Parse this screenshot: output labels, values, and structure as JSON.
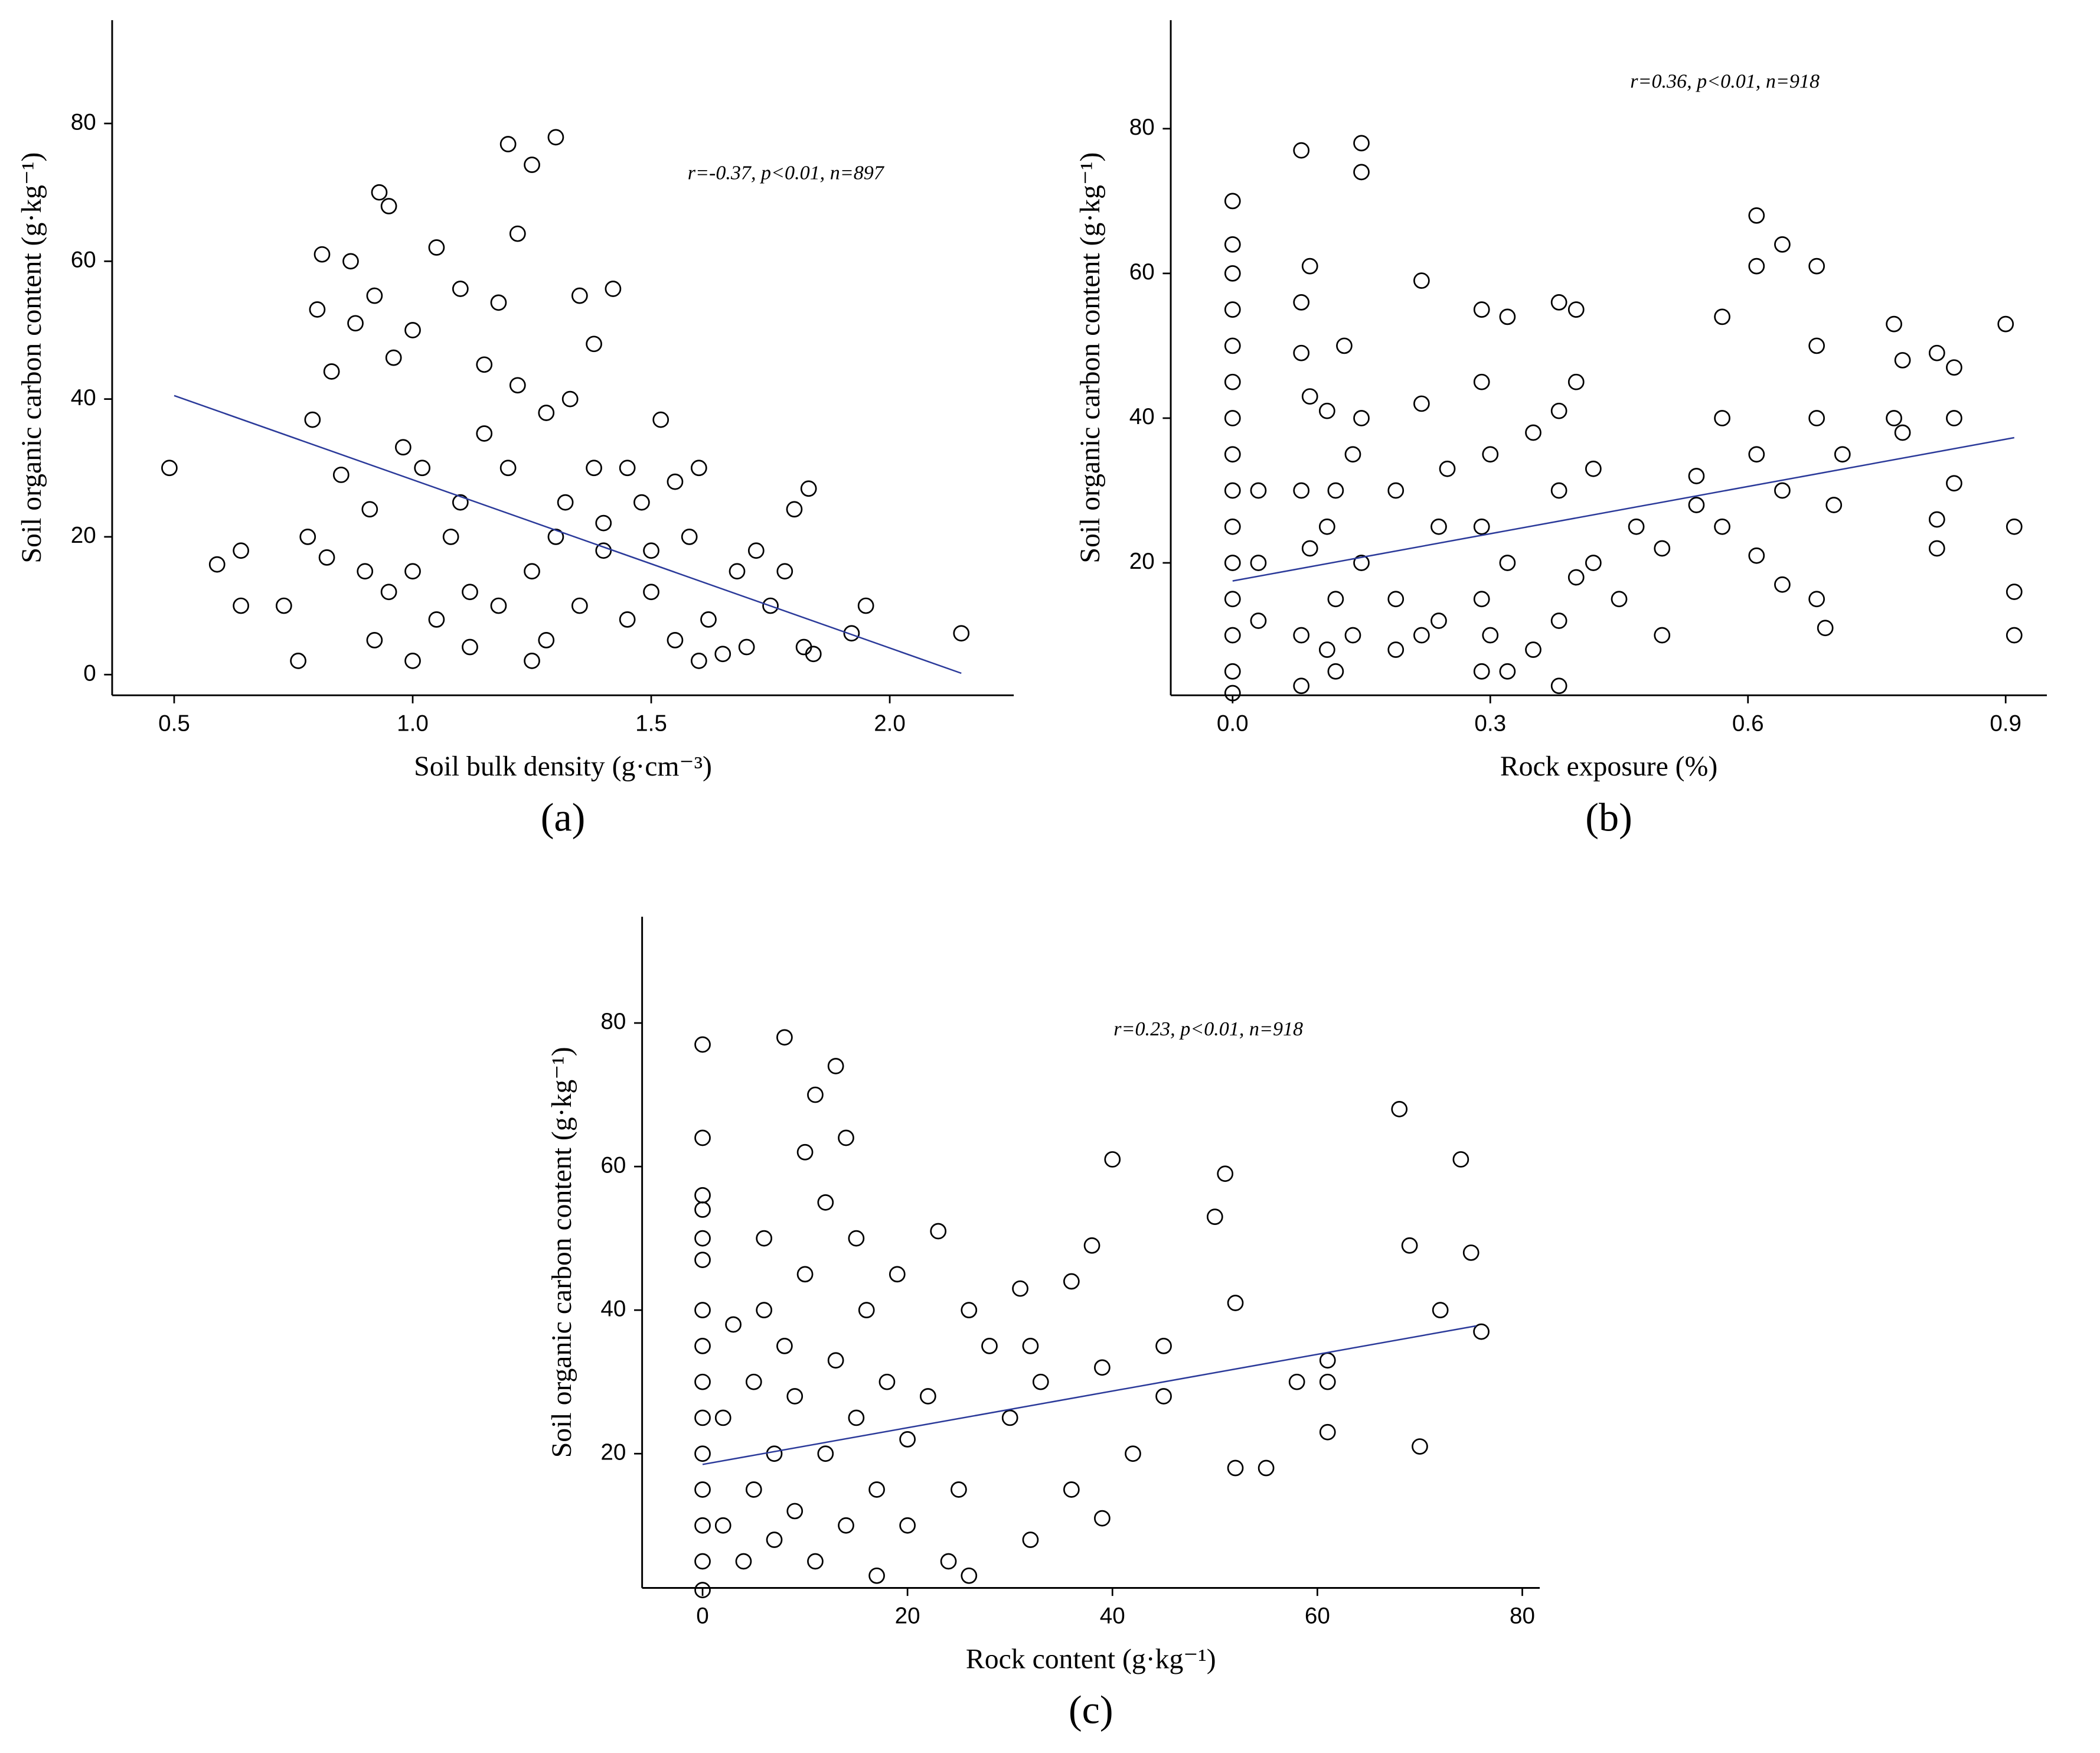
{
  "chart_data": [
    {
      "type": "scatter",
      "panel_label": "(a)",
      "annotation": "r=-0.37, p<0.01, n=897",
      "xlabel": "Soil bulk density (g·cm⁻³)",
      "ylabel": "Soil organic carbon content (g·kg⁻¹)",
      "color": "#000000",
      "trend_color": "#2b3a9a",
      "xlim": [
        0.37,
        2.26
      ],
      "ylim": [
        -3,
        95
      ],
      "xticks": [
        0.5,
        {
          "value": 1,
          "label": "1.0"
        },
        1.5,
        {
          "value": 2,
          "label": "2.0"
        }
      ],
      "yticks": [
        0,
        20,
        40,
        60,
        80
      ],
      "x": [
        0.49,
        0.59,
        0.64,
        0.64,
        0.73,
        0.76,
        0.78,
        0.79,
        0.8,
        0.81,
        0.82,
        0.83,
        0.85,
        0.87,
        0.88,
        0.9,
        0.91,
        0.92,
        0.93,
        0.95,
        0.96,
        0.98,
        1.0,
        1.02,
        1.05,
        1.08,
        1.1,
        1.12,
        1.15,
        1.18,
        1.2,
        1.22,
        1.25,
        1.28,
        1.3,
        1.32,
        1.35,
        1.38,
        1.4,
        1.42,
        1.45,
        1.48,
        1.5,
        1.52,
        1.55,
        1.58,
        1.6,
        1.62,
        1.65,
        1.68,
        1.7,
        1.72,
        1.75,
        1.78,
        1.8,
        1.82,
        1.83,
        1.84,
        1.92,
        1.95,
        2.15,
        1.1,
        1.2,
        1.25,
        1.3,
        1.35,
        1.15,
        1.4,
        1.45,
        1.28,
        1.05,
        1.0,
        1.33,
        1.38,
        1.22,
        1.18,
        1.5,
        1.55,
        0.92,
        0.95,
        1.0,
        1.12,
        1.25,
        1.6
      ],
      "values": [
        30,
        16,
        18,
        10,
        10,
        2,
        20,
        37,
        53,
        61,
        17,
        44,
        29,
        60,
        51,
        15,
        24,
        55,
        70,
        68,
        46,
        33,
        50,
        30,
        62,
        20,
        56,
        12,
        45,
        54,
        77,
        64,
        74,
        38,
        78,
        25,
        55,
        30,
        18,
        56,
        8,
        25,
        12,
        37,
        5,
        20,
        30,
        8,
        3,
        15,
        4,
        18,
        10,
        15,
        24,
        4,
        27,
        3,
        6,
        10,
        6,
        25,
        30,
        15,
        20,
        10,
        35,
        22,
        30,
        5,
        8,
        15,
        40,
        48,
        42,
        10,
        18,
        28,
        5,
        12,
        2,
        4,
        2,
        2
      ],
      "trend_x": [
        0.5,
        2.15
      ],
      "trend_y": [
        40.5,
        0.2
      ]
    },
    {
      "type": "scatter",
      "panel_label": "(b)",
      "annotation": "r=0.36, p<0.01, n=918",
      "xlabel": "Rock exposure (%)",
      "ylabel": "Soil organic carbon content (g·kg⁻¹)",
      "color": "#000000",
      "trend_color": "#2b3a9a",
      "xlim": [
        -0.072,
        0.948
      ],
      "ylim": [
        1.7,
        95
      ],
      "xticks": [
        {
          "value": 0,
          "label": "0.0"
        },
        {
          "value": 0.3,
          "label": "0.3"
        },
        {
          "value": 0.6,
          "label": "0.6"
        },
        {
          "value": 0.9,
          "label": "0.9"
        }
      ],
      "yticks": [
        20,
        40,
        60,
        80
      ],
      "x": [
        0,
        0,
        0,
        0,
        0,
        0,
        0,
        0,
        0,
        0,
        0,
        0,
        0,
        0,
        0,
        0.03,
        0.03,
        0.03,
        0.08,
        0.08,
        0.08,
        0.08,
        0.08,
        0.08,
        0.09,
        0.09,
        0.09,
        0.11,
        0.11,
        0.11,
        0.12,
        0.12,
        0.12,
        0.13,
        0.14,
        0.14,
        0.15,
        0.15,
        0.15,
        0.15,
        0.19,
        0.19,
        0.19,
        0.22,
        0.22,
        0.22,
        0.24,
        0.24,
        0.25,
        0.29,
        0.29,
        0.29,
        0.29,
        0.29,
        0.3,
        0.3,
        0.32,
        0.32,
        0.32,
        0.35,
        0.35,
        0.38,
        0.38,
        0.38,
        0.38,
        0.38,
        0.4,
        0.4,
        0.4,
        0.42,
        0.42,
        0.45,
        0.47,
        0.5,
        0.5,
        0.54,
        0.54,
        0.57,
        0.57,
        0.57,
        0.61,
        0.61,
        0.61,
        0.61,
        0.64,
        0.64,
        0.64,
        0.68,
        0.68,
        0.68,
        0.68,
        0.69,
        0.7,
        0.71,
        0.77,
        0.77,
        0.78,
        0.78,
        0.82,
        0.82,
        0.82,
        0.84,
        0.84,
        0.84,
        0.9,
        0.91,
        0.91,
        0.91
      ],
      "values": [
        2,
        5,
        10,
        15,
        20,
        25,
        30,
        35,
        40,
        45,
        50,
        55,
        60,
        64,
        70,
        12,
        20,
        30,
        3,
        10,
        30,
        49,
        56,
        77,
        22,
        43,
        61,
        8,
        25,
        41,
        5,
        15,
        30,
        50,
        10,
        35,
        20,
        40,
        74,
        78,
        8,
        15,
        30,
        10,
        42,
        59,
        12,
        25,
        33,
        5,
        15,
        25,
        45,
        55,
        10,
        35,
        5,
        20,
        54,
        8,
        38,
        3,
        12,
        30,
        41,
        56,
        18,
        45,
        55,
        20,
        33,
        15,
        25,
        10,
        22,
        28,
        32,
        25,
        40,
        54,
        21,
        35,
        61,
        68,
        17,
        30,
        64,
        15,
        40,
        50,
        61,
        11,
        28,
        35,
        40,
        53,
        38,
        48,
        22,
        26,
        49,
        31,
        40,
        47,
        53,
        10,
        16,
        25
      ],
      "trend_x": [
        0,
        0.91
      ],
      "trend_y": [
        17.5,
        37.3
      ]
    },
    {
      "type": "scatter",
      "panel_label": "(c)",
      "annotation": "r=0.23, p<0.01, n=918",
      "xlabel": "Rock content (g·kg⁻¹)",
      "ylabel": "Soil organic carbon content (g·kg⁻¹)",
      "color": "#000000",
      "trend_color": "#2b3a9a",
      "xlim": [
        -5.9,
        81.7
      ],
      "ylim": [
        1.3,
        94.8
      ],
      "xticks": [
        0,
        20,
        40,
        60,
        80
      ],
      "yticks": [
        20,
        40,
        60,
        80
      ],
      "x": [
        0,
        0,
        0,
        0,
        0,
        0,
        0,
        0,
        0,
        0,
        0,
        0,
        0,
        0,
        0,
        2,
        2,
        3,
        4,
        5,
        5,
        6,
        6,
        7,
        7,
        8,
        8,
        9,
        9,
        10,
        10,
        11,
        11,
        12,
        12,
        13,
        13,
        14,
        14,
        15,
        15,
        16,
        17,
        17,
        18,
        19,
        20,
        20,
        22,
        23,
        24,
        25,
        26,
        26,
        28,
        30,
        31,
        32,
        32,
        33,
        36,
        36,
        38,
        39,
        39,
        40,
        42,
        45,
        45,
        50,
        51,
        52,
        52,
        55,
        58,
        61,
        61,
        61,
        68,
        69,
        70,
        72,
        74,
        75,
        76
      ],
      "values": [
        1,
        5,
        10,
        15,
        20,
        25,
        30,
        35,
        40,
        47,
        50,
        54,
        56,
        64,
        77,
        10,
        25,
        38,
        5,
        15,
        30,
        40,
        50,
        8,
        20,
        35,
        78,
        12,
        28,
        45,
        62,
        70,
        5,
        20,
        55,
        74,
        33,
        64,
        10,
        25,
        50,
        40,
        3,
        15,
        30,
        45,
        10,
        22,
        28,
        51,
        5,
        15,
        3,
        40,
        35,
        25,
        43,
        8,
        35,
        30,
        15,
        44,
        49,
        32,
        11,
        61,
        20,
        35,
        28,
        53,
        59,
        41,
        18,
        18,
        30,
        33,
        23,
        30,
        68,
        49,
        21,
        40,
        61,
        48,
        37
      ],
      "trend_x": [
        0,
        75.5
      ],
      "trend_y": [
        18.5,
        37.8
      ]
    }
  ]
}
